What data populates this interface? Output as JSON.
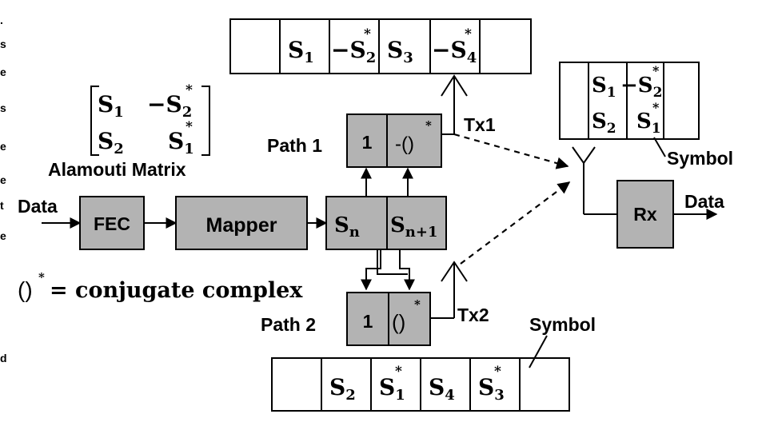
{
  "matrix": {
    "r1c1_base": "S",
    "r1c1_sub": "1",
    "r1c2_prefix": "−",
    "r1c2_base": "S",
    "r1c2_sup": "*",
    "r1c2_sub": "2",
    "r2c1_base": "S",
    "r2c1_sub": "2",
    "r2c2_base": "S",
    "r2c2_sup": "*",
    "r2c2_sub": "1",
    "caption": "Alamouti Matrix"
  },
  "input_label": "Data",
  "fec_label": "FEC",
  "mapper_label": "Mapper",
  "splitter": {
    "left_base": "S",
    "left_sub": "n",
    "right_base": "S",
    "right_sub": "n+1"
  },
  "path1": {
    "label": "Path 1",
    "one": "1",
    "conj": "-()",
    "conj_sup": "*",
    "tx": "Tx1"
  },
  "path2": {
    "label": "Path 2",
    "one": "1",
    "conj": "()",
    "conj_sup": "*",
    "tx": "Tx2"
  },
  "conj_note": {
    "symbol": "()",
    "sup": "*",
    "text": "= conjugate complex"
  },
  "top_sequence": [
    {
      "prefix": "",
      "base": "",
      "sub": "",
      "sup": ""
    },
    {
      "prefix": "",
      "base": "S",
      "sub": "1",
      "sup": ""
    },
    {
      "prefix": "−",
      "base": "S",
      "sub": "2",
      "sup": "*"
    },
    {
      "prefix": "",
      "base": "S",
      "sub": "3",
      "sup": ""
    },
    {
      "prefix": "−",
      "base": "S",
      "sub": "4",
      "sup": "*"
    },
    {
      "prefix": "",
      "base": "",
      "sub": "",
      "sup": ""
    }
  ],
  "bottom_sequence": [
    {
      "prefix": "",
      "base": "",
      "sub": "",
      "sup": ""
    },
    {
      "prefix": "",
      "base": "S",
      "sub": "2",
      "sup": ""
    },
    {
      "prefix": "",
      "base": "S",
      "sub": "1",
      "sup": "*"
    },
    {
      "prefix": "",
      "base": "S",
      "sub": "4",
      "sup": ""
    },
    {
      "prefix": "",
      "base": "S",
      "sub": "3",
      "sup": "*"
    },
    {
      "prefix": "",
      "base": "",
      "sub": "",
      "sup": ""
    }
  ],
  "rx_buffer": {
    "row1": {
      "a_base": "S",
      "a_sub": "1",
      "b_prefix": "−",
      "b_base": "S",
      "b_sub": "2",
      "b_sup": "*"
    },
    "row2": {
      "a_base": "S",
      "a_sub": "2",
      "b_base": "S",
      "b_sub": "1",
      "b_sup": "*"
    }
  },
  "rx_label": "Rx",
  "output_label": "Data",
  "symbol_label_top": "Symbol",
  "symbol_label_bottom": "Symbol",
  "left_margin_fragments": [
    ".",
    "s",
    "e",
    "s",
    "e",
    "e",
    "t",
    "e",
    "d"
  ]
}
